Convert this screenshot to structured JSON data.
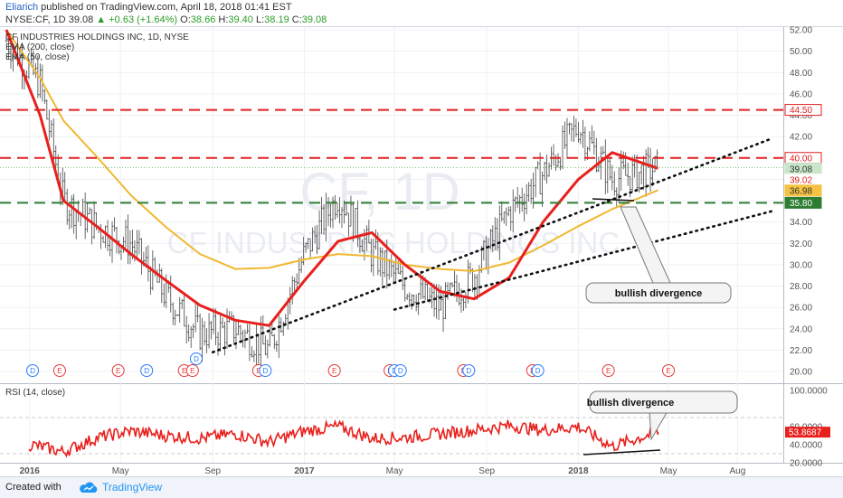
{
  "header": {
    "author": "Eliarich",
    "published": "published on TradingView.com, April 18, 2018 01:41 EST",
    "symbol": "NYSE:CF, 1D",
    "last": "39.08",
    "up_arrow": "▲",
    "change": "+0.63 (+1.64%)",
    "open_label": "O:",
    "open": "38.66",
    "high_label": "H:",
    "high": "39.40",
    "low_label": "L:",
    "low": "38.19",
    "close_label": "C:",
    "close": "39.08"
  },
  "main_chart": {
    "title": "CF INDUSTRIES HOLDINGS INC, 1D, NYSE",
    "legend_ema200": "EMA (200, close)",
    "legend_ema50": "EMA (50, close)",
    "watermark_ticker": "CF, 1D",
    "watermark_name": "CF INDUSTRIES HOLDINGS INC",
    "annotation": "bullish divergence",
    "price_tags": [
      {
        "value": "44.50",
        "bg": "#ffffff",
        "fg": "#e02020",
        "border": "#e02020"
      },
      {
        "value": "40.00",
        "bg": "#ffffff",
        "fg": "#e02020",
        "border": "#e02020"
      },
      {
        "value": "39.08",
        "bg": "#c8e6c9",
        "fg": "#333333",
        "border": "#c8e6c9"
      },
      {
        "value": "39.02",
        "bg": "#ffffff",
        "fg": "#e02020",
        "border": "#ffffff"
      },
      {
        "value": "36.98",
        "bg": "#f5c242",
        "fg": "#333333",
        "border": "#f5c242"
      },
      {
        "value": "35.80",
        "bg": "#2e7d32",
        "fg": "#ffffff",
        "border": "#2e7d32"
      }
    ],
    "event_markers": [
      {
        "label": "D",
        "kind": "dividend"
      },
      {
        "label": "E",
        "kind": "earnings"
      },
      {
        "label": "E",
        "kind": "earnings"
      },
      {
        "label": "D",
        "kind": "dividend"
      },
      {
        "label": "E",
        "kind": "earnings"
      },
      {
        "label": "E",
        "kind": "earnings"
      },
      {
        "label": "D",
        "kind": "dividend"
      },
      {
        "label": "E",
        "kind": "earnings"
      },
      {
        "label": "D",
        "kind": "dividend"
      },
      {
        "label": "E",
        "kind": "earnings"
      },
      {
        "label": "E",
        "kind": "earnings"
      },
      {
        "label": "D",
        "kind": "dividend"
      },
      {
        "label": "D",
        "kind": "dividend"
      },
      {
        "label": "E",
        "kind": "earnings"
      },
      {
        "label": "D",
        "kind": "dividend"
      },
      {
        "label": "E",
        "kind": "earnings"
      },
      {
        "label": "D",
        "kind": "dividend"
      },
      {
        "label": "E",
        "kind": "earnings"
      },
      {
        "label": "E",
        "kind": "earnings"
      }
    ]
  },
  "rsi_panel": {
    "title": "RSI (14, close)",
    "annotation": "bullish divergence",
    "current_tag": "53.8687",
    "tick_labels": [
      "100.0000",
      "60.0000",
      "40.0000",
      "20.0000"
    ]
  },
  "footer": {
    "created_with": "Created with",
    "brand": "TradingView"
  },
  "colors": {
    "ema50": "#e8201c",
    "ema200": "#f0b830",
    "resistance": "#e02020",
    "support": "#2e7d32",
    "rsi": "#e8201c",
    "candles": "#444444"
  },
  "chart_data": [
    {
      "type": "line",
      "title": "CF INDUSTRIES HOLDINGS INC, 1D, NYSE",
      "x_tick_labels": [
        "2016",
        "May",
        "Sep",
        "2017",
        "May",
        "Sep",
        "2018",
        "May",
        "Aug"
      ],
      "x_range": [
        "2015-12-01",
        "2018-10-01"
      ],
      "y_tick_labels": [
        "52.00",
        "50.00",
        "48.00",
        "46.00",
        "44.00",
        "42.00",
        "40.00",
        "38.00",
        "36.00",
        "34.00",
        "32.00",
        "30.00",
        "28.00",
        "26.00",
        "24.00",
        "22.00",
        "20.00"
      ],
      "ylim": [
        19.5,
        52.5
      ],
      "x_dates": [
        "2015-12-01",
        "2016-01-15",
        "2016-02-15",
        "2016-04-01",
        "2016-05-15",
        "2016-07-01",
        "2016-08-15",
        "2016-10-01",
        "2016-11-15",
        "2017-01-01",
        "2017-02-15",
        "2017-04-01",
        "2017-05-15",
        "2017-07-01",
        "2017-08-15",
        "2017-10-01",
        "2017-11-15",
        "2018-01-01",
        "2018-02-15",
        "2018-04-17"
      ],
      "series": [
        {
          "name": "EMA (200, close)",
          "values": [
            52.0,
            47.5,
            43.5,
            40.0,
            36.5,
            33.5,
            31.0,
            29.6,
            29.7,
            30.5,
            31.0,
            30.8,
            30.0,
            29.6,
            29.4,
            30.2,
            31.8,
            33.6,
            35.2,
            36.98
          ]
        },
        {
          "name": "EMA (50, close)",
          "values": [
            52.0,
            44.0,
            36.0,
            33.5,
            31.0,
            28.5,
            26.2,
            24.8,
            24.3,
            28.5,
            32.2,
            33.0,
            30.0,
            27.5,
            26.8,
            28.8,
            34.0,
            38.0,
            40.5,
            39.02
          ]
        }
      ],
      "price_series_sampled": {
        "name": "CF, 1D",
        "values": [
          51.0,
          47.0,
          36.0,
          33.5,
          32.0,
          27.0,
          23.5,
          24.0,
          22.0,
          31.0,
          36.5,
          31.0,
          28.0,
          26.0,
          29.0,
          35.0,
          38.5,
          43.0,
          38.0,
          39.08
        ]
      },
      "horizontal_levels": [
        {
          "value": 44.5,
          "style": "dashed",
          "color": "#e02020"
        },
        {
          "value": 40.0,
          "style": "dashed",
          "color": "#e02020"
        },
        {
          "value": 35.8,
          "style": "dashed",
          "color": "#2e7d32"
        }
      ],
      "trendlines": [
        {
          "style": "dotted",
          "from": [
            "2016-09-01",
            21.8
          ],
          "to": [
            "2018-09-15",
            41.8
          ]
        },
        {
          "style": "dotted",
          "from": [
            "2017-05-01",
            25.8
          ],
          "to": [
            "2018-09-15",
            35.0
          ]
        }
      ]
    },
    {
      "type": "line",
      "title": "RSI (14, close)",
      "y_tick_labels": [
        "100.0000",
        "60.0000",
        "40.0000",
        "20.0000"
      ],
      "ylim": [
        20,
        100
      ],
      "reference_lines": [
        70,
        30
      ],
      "series": [
        {
          "name": "RSI (14, close)",
          "values": [
            45,
            38,
            32,
            48,
            55,
            50,
            47,
            52,
            43,
            55,
            60,
            47,
            48,
            52,
            56,
            61,
            56,
            60,
            38,
            53.87
          ]
        }
      ]
    }
  ]
}
